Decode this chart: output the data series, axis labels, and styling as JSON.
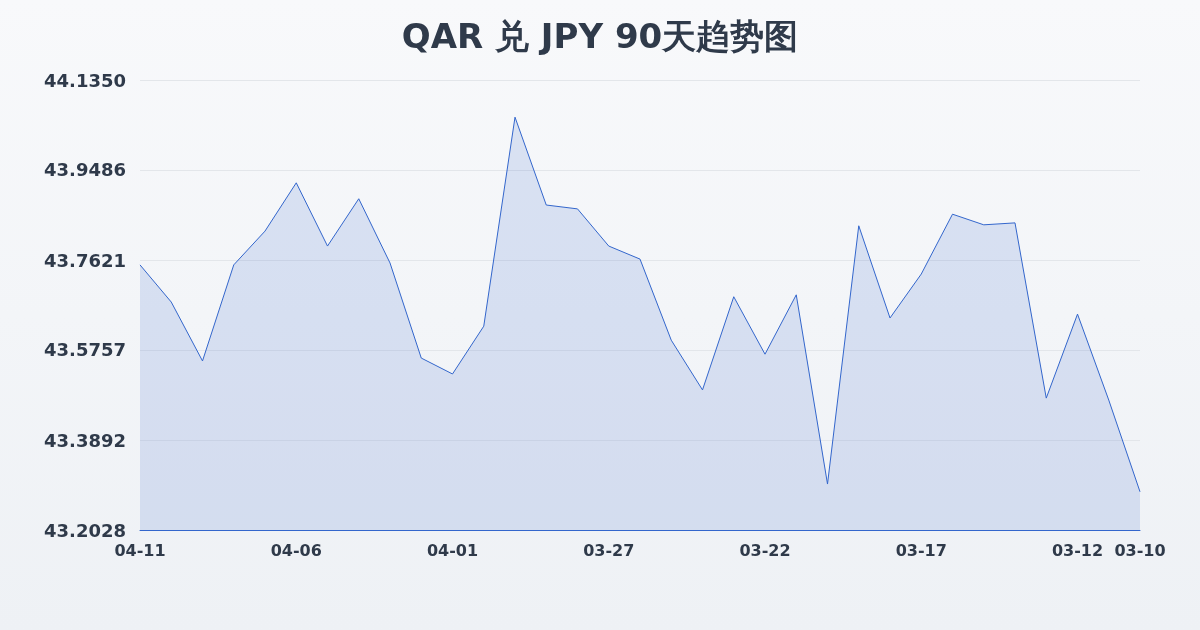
{
  "chart_data": {
    "type": "area",
    "title": "QAR 兑 JPY 90天趋势图",
    "categories": [
      "04-11",
      null,
      null,
      null,
      null,
      "04-06",
      null,
      null,
      null,
      null,
      "04-01",
      null,
      null,
      null,
      null,
      "03-27",
      null,
      null,
      null,
      null,
      "03-22",
      null,
      null,
      null,
      null,
      "03-17",
      null,
      null,
      null,
      null,
      "03-12",
      null,
      "03-10"
    ],
    "series": [
      {
        "color": "#3366cc",
        "values": [
          43.752,
          43.675,
          43.553,
          43.752,
          43.822,
          43.922,
          43.791,
          43.889,
          43.756,
          43.559,
          43.526,
          43.625,
          44.058,
          43.876,
          43.868,
          43.791,
          43.764,
          43.596,
          43.493,
          43.686,
          43.567,
          43.69,
          43.298,
          43.833,
          43.642,
          43.733,
          43.857,
          43.835,
          43.839,
          43.476,
          43.65,
          43.472,
          43.282
        ]
      }
    ],
    "ylim": [
      43.2028,
      44.135
    ],
    "yticks": [
      43.2028,
      43.3892,
      43.5757,
      43.7621,
      43.9486,
      {
        "value": 44.135,
        "label": "44.1350"
      }
    ],
    "grid": "y",
    "marker": "none",
    "line_style": "solid"
  }
}
